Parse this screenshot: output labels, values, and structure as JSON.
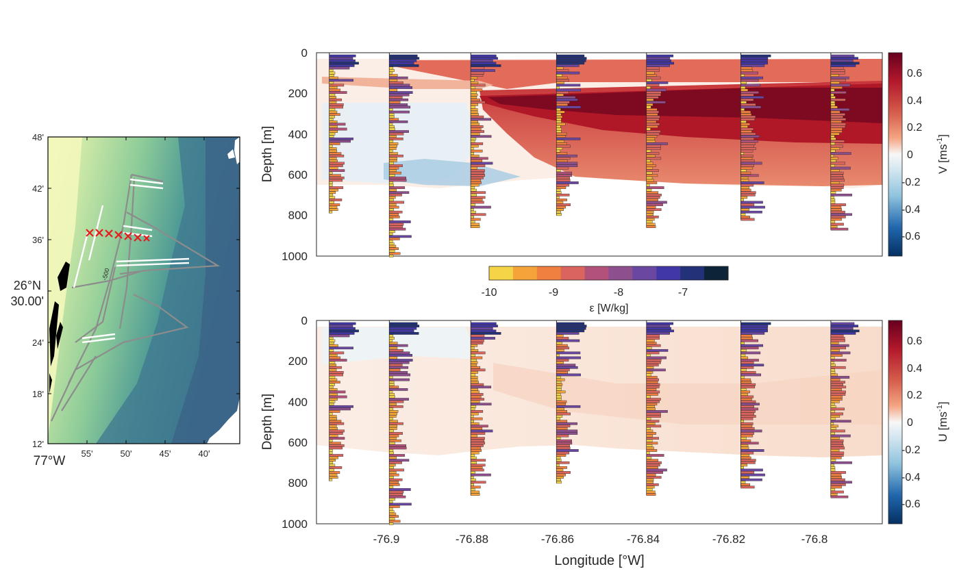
{
  "chart_data": [
    {
      "type": "map",
      "panel": "map",
      "lat_ticks": [
        "48'",
        "42'",
        "36'",
        "26°N",
        "30.00'",
        "24'",
        "18'",
        "12'"
      ],
      "lon_ticks": [
        "77°W",
        "55'",
        "50'",
        "45'",
        "40'"
      ],
      "contour_label": "-500",
      "colors": {
        "shallow": "#f0f5b4",
        "mid": "#8ccb98",
        "deep": "#3c6f8c",
        "land": "#000000",
        "tracks": "#8c8c8c",
        "stations": "#e8191c"
      },
      "station_count": 7
    },
    {
      "type": "heatmap",
      "panel": "V",
      "xlim": [
        -76.917,
        -76.785
      ],
      "ylim": [
        1000,
        0
      ],
      "ylabel": "Depth [m]",
      "y_ticks": [
        0,
        200,
        400,
        600,
        800,
        1000
      ],
      "colorbar_label": "V [ms",
      "colorbar_exp": "-1",
      "colorbar_ticks": [
        "0.6",
        "0.4",
        "0.2",
        "0",
        "-0.2",
        "-0.4",
        "-0.6"
      ],
      "clim": [
        -0.75,
        0.75
      ]
    },
    {
      "type": "heatmap",
      "panel": "U",
      "xlim": [
        -76.917,
        -76.785
      ],
      "ylim": [
        1000,
        0
      ],
      "xlabel": "Longitude [°W]",
      "ylabel": "Depth [m]",
      "x_ticks": [
        "-76.9",
        "-76.88",
        "-76.86",
        "-76.84",
        "-76.82",
        "-76.8"
      ],
      "y_ticks": [
        0,
        200,
        400,
        600,
        800,
        1000
      ],
      "colorbar_label": "U [ms",
      "colorbar_exp": "-1",
      "colorbar_ticks": [
        "0.6",
        "0.4",
        "0.2",
        "0",
        "-0.2",
        "-0.4",
        "-0.6"
      ],
      "clim": [
        -0.75,
        0.75
      ]
    },
    {
      "type": "colorbar",
      "panel": "epsilon",
      "label": "ε [W/kg]",
      "ticks": [
        "-10",
        "-9",
        "-8",
        "-7"
      ],
      "colors": [
        "#f5d547",
        "#f5a43a",
        "#ef8040",
        "#d9655e",
        "#b2527a",
        "#8e4f8f",
        "#6a47a1",
        "#4237a6",
        "#223178",
        "#0c2437"
      ]
    }
  ],
  "profiles": [
    {
      "lon": -76.914,
      "max_depth": 790
    },
    {
      "lon": -76.9,
      "max_depth": 1000
    },
    {
      "lon": -76.881,
      "max_depth": 860
    },
    {
      "lon": -76.861,
      "max_depth": 800
    },
    {
      "lon": -76.84,
      "max_depth": 860
    },
    {
      "lon": -76.818,
      "max_depth": 820
    },
    {
      "lon": -76.797,
      "max_depth": 870
    }
  ]
}
